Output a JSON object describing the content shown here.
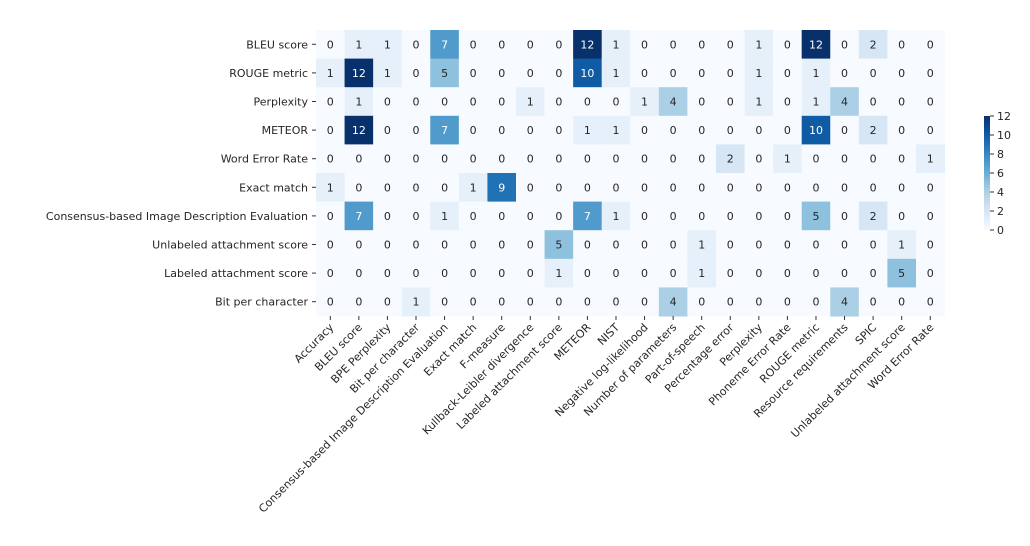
{
  "chart_data": {
    "type": "heatmap",
    "title": "",
    "xlabel": "",
    "ylabel": "",
    "rows": [
      "BLEU score",
      "ROUGE metric",
      "Perplexity",
      "METEOR",
      "Word Error Rate",
      "Exact match",
      "Consensus-based Image Description Evaluation",
      "Unlabeled attachment score",
      "Labeled attachment score",
      "Bit per character"
    ],
    "columns": [
      "Accuracy",
      "BLEU score",
      "BPE Perplexity",
      "Bit per character",
      "Consensus-based Image Description Evaluation",
      "Exact match",
      "F-measure",
      "Kullback-Leibler divergence",
      "Labeled attachment score",
      "METEOR",
      "NIST",
      "Negative log-likelihood",
      "Number of parameters",
      "Part-of-speech",
      "Percentage error",
      "Perplexity",
      "Phoneme Error Rate",
      "ROUGE metric",
      "Resource requirements",
      "SPIC",
      "Unlabeled attachment score",
      "Word Error Rate"
    ],
    "values": [
      [
        0,
        1,
        1,
        0,
        7,
        0,
        0,
        0,
        0,
        12,
        1,
        0,
        0,
        0,
        0,
        1,
        0,
        12,
        0,
        2,
        0,
        0
      ],
      [
        1,
        12,
        1,
        0,
        5,
        0,
        0,
        0,
        0,
        10,
        1,
        0,
        0,
        0,
        0,
        1,
        0,
        1,
        0,
        0,
        0,
        0
      ],
      [
        0,
        1,
        0,
        0,
        0,
        0,
        0,
        1,
        0,
        0,
        0,
        1,
        4,
        0,
        0,
        1,
        0,
        1,
        4,
        0,
        0,
        0
      ],
      [
        0,
        12,
        0,
        0,
        7,
        0,
        0,
        0,
        0,
        1,
        1,
        0,
        0,
        0,
        0,
        0,
        0,
        10,
        0,
        2,
        0,
        0
      ],
      [
        0,
        0,
        0,
        0,
        0,
        0,
        0,
        0,
        0,
        0,
        0,
        0,
        0,
        0,
        2,
        0,
        1,
        0,
        0,
        0,
        0,
        1
      ],
      [
        1,
        0,
        0,
        0,
        0,
        1,
        9,
        0,
        0,
        0,
        0,
        0,
        0,
        0,
        0,
        0,
        0,
        0,
        0,
        0,
        0,
        0
      ],
      [
        0,
        7,
        0,
        0,
        1,
        0,
        0,
        0,
        0,
        7,
        1,
        0,
        0,
        0,
        0,
        0,
        0,
        5,
        0,
        2,
        0,
        0
      ],
      [
        0,
        0,
        0,
        0,
        0,
        0,
        0,
        0,
        5,
        0,
        0,
        0,
        0,
        1,
        0,
        0,
        0,
        0,
        0,
        0,
        1,
        0
      ],
      [
        0,
        0,
        0,
        0,
        0,
        0,
        0,
        0,
        1,
        0,
        0,
        0,
        0,
        1,
        0,
        0,
        0,
        0,
        0,
        0,
        5,
        0
      ],
      [
        0,
        0,
        0,
        1,
        0,
        0,
        0,
        0,
        0,
        0,
        0,
        0,
        4,
        0,
        0,
        0,
        0,
        0,
        4,
        0,
        0,
        0
      ]
    ],
    "colormap": "Blues",
    "colorbar": {
      "range": [
        0,
        12
      ],
      "ticks": [
        0,
        2,
        4,
        6,
        8,
        10,
        12
      ],
      "placement": "right"
    },
    "annotations": true
  }
}
